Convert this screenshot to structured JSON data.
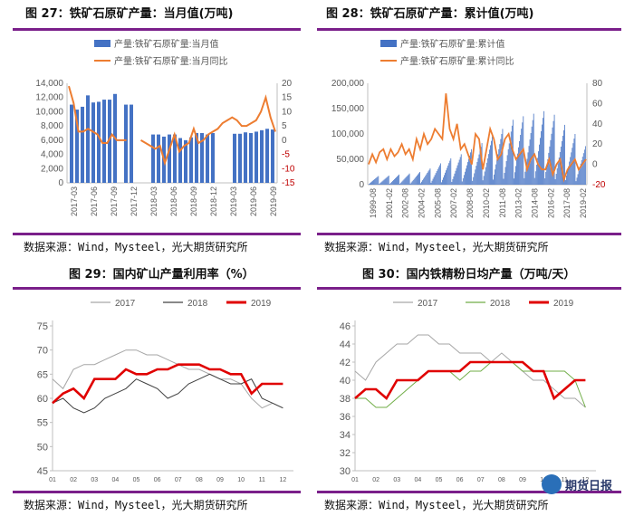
{
  "figure_captions": {
    "f27": "图 27：铁矿石原矿产量：当月值(万吨)",
    "f28": "图 28：铁矿石原矿产量：累计值(万吨)",
    "f29": "图 29：国内矿山产量利用率（%）",
    "f30": "图 30：国内铁精粉日均产量（万吨/天）"
  },
  "source_note": "数据来源：Wind，Mysteel，光大期货研究所",
  "watermark": {
    "text": "期货日报"
  },
  "colors": {
    "bar_blue": "#4472c4",
    "line_orange": "#ed7d31",
    "line_grey": "#a6a6a6",
    "line_dark": "#404040",
    "line_red": "#e00000",
    "line_green": "#70ad47",
    "rule_purple": "#7a1f8a"
  },
  "chart_data": [
    {
      "id": "fig27",
      "type": "bar",
      "title": "图 27：铁矿石原矿产量：当月值(万吨)",
      "legend_placement": "top-left",
      "xlabel": "",
      "ylabel": "",
      "grid": false,
      "x_tick_labels": [
        "2017-03",
        "2017-06",
        "2017-09",
        "2017-12",
        "2018-03",
        "2018-06",
        "2018-09",
        "2018-12",
        "2019-03",
        "2019-06",
        "2019-09"
      ],
      "ylim": [
        0,
        14000
      ],
      "y_ticks": [
        "0",
        "2,000",
        "4,000",
        "6,000",
        "8,000",
        "10,000",
        "12,000",
        "14,000"
      ],
      "y2lim": [
        -15,
        20
      ],
      "y2_ticks": [
        "-15",
        "-10",
        "-5",
        "0",
        "5",
        "10",
        "15",
        "20"
      ],
      "series": [
        {
          "name": "产量:铁矿石原矿量:当月值",
          "kind": "bar",
          "axis": "left",
          "values": [
            11000,
            10300,
            10700,
            12300,
            11300,
            11400,
            11700,
            11700,
            12500,
            null,
            11000,
            11000,
            null,
            null,
            null,
            6800,
            6800,
            6500,
            6800,
            6800,
            6300,
            6000,
            6400,
            7000,
            7000,
            6800,
            7000,
            null,
            null,
            null,
            6900,
            6900,
            7100,
            7000,
            7200,
            7400,
            7600,
            7500
          ]
        },
        {
          "name": "产量:铁矿石原矿量:当月同比",
          "kind": "line",
          "axis": "right",
          "values": [
            19,
            13,
            3,
            3,
            4,
            3,
            2,
            -1,
            -1,
            2,
            0,
            0,
            0,
            null,
            null,
            0,
            -1,
            -2,
            -3,
            -2,
            -8,
            -3,
            2,
            -4,
            -2,
            -1,
            4,
            -1,
            0,
            2,
            3,
            4,
            6,
            7,
            8,
            7,
            5,
            5,
            6,
            7,
            10,
            15,
            8,
            3
          ]
        }
      ]
    },
    {
      "id": "fig28",
      "type": "bar",
      "title": "图 28：铁矿石原矿产量：累计值(万吨)",
      "legend_placement": "top-left",
      "xlabel": "",
      "ylabel": "",
      "grid": false,
      "x_tick_labels": [
        "1999-08",
        "2001-02",
        "2002-08",
        "2004-02",
        "2005-08",
        "2007-02",
        "2008-08",
        "2010-02",
        "2011-08",
        "2013-02",
        "2014-08",
        "2016-02",
        "2017-08",
        "2019-02"
      ],
      "ylim": [
        0,
        200000
      ],
      "y_ticks": [
        "0",
        "50,000",
        "100,000",
        "150,000",
        "200,000"
      ],
      "y2lim": [
        -20,
        80
      ],
      "y2_ticks": [
        "-20",
        "0",
        "20",
        "40",
        "60",
        "80"
      ],
      "series": [
        {
          "name": "产量:铁矿石原矿量:累计值",
          "kind": "bar",
          "axis": "left",
          "annual_peaks": [
            17000,
            18000,
            20000,
            22000,
            25000,
            32000,
            42000,
            52000,
            60000,
            70000,
            82000,
            95000,
            110000,
            128000,
            135000,
            140000,
            145000,
            138000,
            118000,
            100000,
            76000
          ]
        },
        {
          "name": "产量:铁矿石原矿量:累计同比",
          "kind": "line",
          "axis": "right",
          "values": [
            0,
            10,
            2,
            12,
            15,
            5,
            15,
            8,
            12,
            20,
            10,
            15,
            5,
            25,
            15,
            30,
            20,
            25,
            35,
            30,
            25,
            70,
            35,
            25,
            40,
            15,
            20,
            10,
            0,
            30,
            25,
            -5,
            15,
            35,
            25,
            5,
            10,
            25,
            30,
            15,
            5,
            10,
            15,
            -5,
            5,
            10,
            0,
            -5,
            -5,
            5,
            -10,
            0,
            5,
            -15,
            -5,
            0,
            5,
            -5,
            0,
            5
          ]
        }
      ]
    },
    {
      "id": "fig29",
      "type": "line",
      "title": "图 29：国内矿山产量利用率（%）",
      "legend_placement": "top",
      "xlabel": "",
      "ylabel": "",
      "grid": false,
      "x_tick_labels": [
        "01",
        "02",
        "03",
        "04",
        "05",
        "06",
        "07",
        "08",
        "09",
        "10",
        "11",
        "12"
      ],
      "xlim": [
        1,
        12.5
      ],
      "ylim": [
        45,
        75
      ],
      "y_ticks": [
        "45",
        "50",
        "55",
        "60",
        "65",
        "70",
        "75"
      ],
      "series": [
        {
          "name": "2017",
          "x": [
            1,
            1.5,
            2,
            2.5,
            3,
            3.5,
            4,
            4.5,
            5,
            5.5,
            6,
            6.5,
            7,
            7.5,
            8,
            8.5,
            9,
            9.5,
            10,
            10.5,
            11,
            11.5,
            12
          ],
          "values": [
            64,
            62,
            66,
            67,
            67,
            68,
            69,
            70,
            70,
            69,
            69,
            68,
            67,
            66,
            66,
            65,
            64,
            64,
            63,
            60,
            58,
            59,
            58
          ]
        },
        {
          "name": "2018",
          "x": [
            1,
            1.5,
            2,
            2.5,
            3,
            3.5,
            4,
            4.5,
            5,
            5.5,
            6,
            6.5,
            7,
            7.5,
            8,
            8.5,
            9,
            9.5,
            10,
            10.5,
            11,
            11.5,
            12
          ],
          "values": [
            59,
            60,
            58,
            57,
            58,
            60,
            61,
            62,
            64,
            63,
            62,
            60,
            61,
            63,
            64,
            65,
            64,
            63,
            63,
            64,
            60,
            59,
            58
          ]
        },
        {
          "name": "2019",
          "x": [
            1,
            1.5,
            2,
            2.5,
            3,
            3.5,
            4,
            4.5,
            5,
            5.5,
            6,
            6.5,
            7,
            7.5,
            8,
            8.5,
            9,
            9.5,
            10,
            10.5,
            11,
            11.5,
            12
          ],
          "values": [
            59,
            61,
            62,
            60,
            64,
            64,
            64,
            66,
            65,
            65,
            66,
            66,
            67,
            67,
            67,
            66,
            66,
            65,
            65,
            61,
            63,
            63,
            63
          ]
        }
      ]
    },
    {
      "id": "fig30",
      "type": "line",
      "title": "图 30：国内铁精粉日均产量（万吨/天）",
      "legend_placement": "top",
      "xlabel": "",
      "ylabel": "",
      "grid": false,
      "x_tick_labels": [
        "01",
        "02",
        "03",
        "04",
        "05",
        "06",
        "07",
        "08",
        "09",
        "10",
        "11",
        "12"
      ],
      "xlim": [
        1,
        12.5
      ],
      "ylim": [
        30,
        46
      ],
      "y_ticks": [
        "30",
        "32",
        "34",
        "36",
        "38",
        "40",
        "42",
        "44",
        "46"
      ],
      "series": [
        {
          "name": "2017",
          "x": [
            1,
            1.5,
            2,
            2.5,
            3,
            3.5,
            4,
            4.5,
            5,
            5.5,
            6,
            6.5,
            7,
            7.5,
            8,
            8.5,
            9,
            9.5,
            10,
            10.5,
            11,
            11.5,
            12
          ],
          "values": [
            41,
            40,
            42,
            43,
            44,
            44,
            45,
            45,
            44,
            44,
            43,
            43,
            43,
            42,
            43,
            42,
            41,
            40,
            40,
            39,
            38,
            38,
            37
          ]
        },
        {
          "name": "2018",
          "x": [
            1,
            1.5,
            2,
            2.5,
            3,
            3.5,
            4,
            4.5,
            5,
            5.5,
            6,
            6.5,
            7,
            7.5,
            8,
            8.5,
            9,
            9.5,
            10,
            10.5,
            11,
            11.5,
            12
          ],
          "values": [
            38,
            38,
            37,
            37,
            38,
            39,
            40,
            41,
            41,
            41,
            40,
            41,
            41,
            42,
            42,
            42,
            41,
            41,
            41,
            41,
            41,
            40,
            37
          ]
        },
        {
          "name": "2019",
          "x": [
            1,
            1.5,
            2,
            2.5,
            3,
            3.5,
            4,
            4.5,
            5,
            5.5,
            6,
            6.5,
            7,
            7.5,
            8,
            8.5,
            9,
            9.5,
            10,
            10.5,
            11,
            11.5,
            12
          ],
          "values": [
            38,
            39,
            39,
            38,
            40,
            40,
            40,
            41,
            41,
            41,
            41,
            42,
            42,
            42,
            42,
            42,
            42,
            41,
            41,
            38,
            39,
            40,
            40
          ]
        }
      ]
    }
  ]
}
